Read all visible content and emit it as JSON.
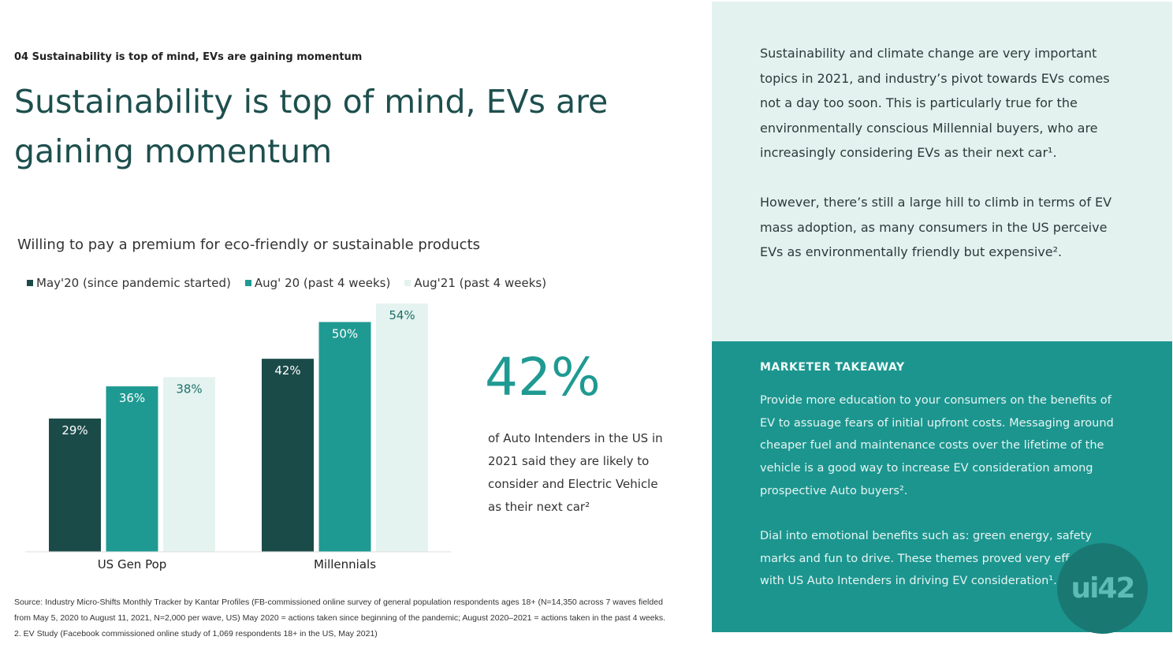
{
  "eyebrow": "04 Sustainability is top of mind, EVs are gaining momentum",
  "title": "Sustainability is top of mind, EVs are gaining momentum",
  "chart_data": {
    "type": "bar",
    "title": "Willing to pay a premium for eco-friendly or sustainable products",
    "categories": [
      "US Gen Pop",
      "Millennials"
    ],
    "series": [
      {
        "name": "May'20 (since pandemic started)",
        "values": [
          29,
          42
        ],
        "color": "#1b4b49"
      },
      {
        "name": "Aug' 20 (past 4 weeks)",
        "values": [
          36,
          50
        ],
        "color": "#1f9a92"
      },
      {
        "name": "Aug'21 (past 4 weeks)",
        "values": [
          38,
          54
        ],
        "color": "#e4f3ef"
      }
    ],
    "unit": "%",
    "legend": "top-left",
    "grid": false
  },
  "stat": {
    "value": "42%",
    "text": "of Auto Intenders in the US in 2021 said they are likely to consider and Electric Vehicle as their next car²"
  },
  "source": "Source: Industry Micro-Shifts Monthly Tracker by Kantar Profiles (FB-commissioned online survey of general population respondents ages 18+ (N=14,350 across 7 waves fielded from May 5, 2020 to August 11, 2021, N=2,000 per wave, US) May 2020 = actions taken since beginning of the pandemic; August 2020–2021 = actions taken in the past 4 weeks. 2. EV Study (Facebook commissioned online study of 1,069 respondents 18+ in the US, May 2021)",
  "panel": {
    "p1": "Sustainability and climate change are very important topics in 2021, and industry’s pivot towards EVs comes not a day too soon. This is particularly true for the environmentally conscious Millennial buyers, who are increasingly considering EVs as their next car¹.",
    "p2": "However, there’s still a large hill to climb in terms of EV mass adoption, as many consumers in the US perceive EVs as environmentally friendly but expensive².",
    "takeaway_label": "MARKETER TAKEAWAY",
    "t1": "Provide more education to your consumers on the benefits of EV to assuage fears of initial upfront costs. Messaging around cheaper fuel and maintenance costs over the lifetime of the vehicle is a good way to increase EV consideration among prospective Auto buyers².",
    "t2": "Dial into emotional benefits such as: green energy, safety marks and fun to drive. These themes proved very effective with US Auto Intenders in driving EV consideration¹."
  },
  "watermark": "ui42"
}
